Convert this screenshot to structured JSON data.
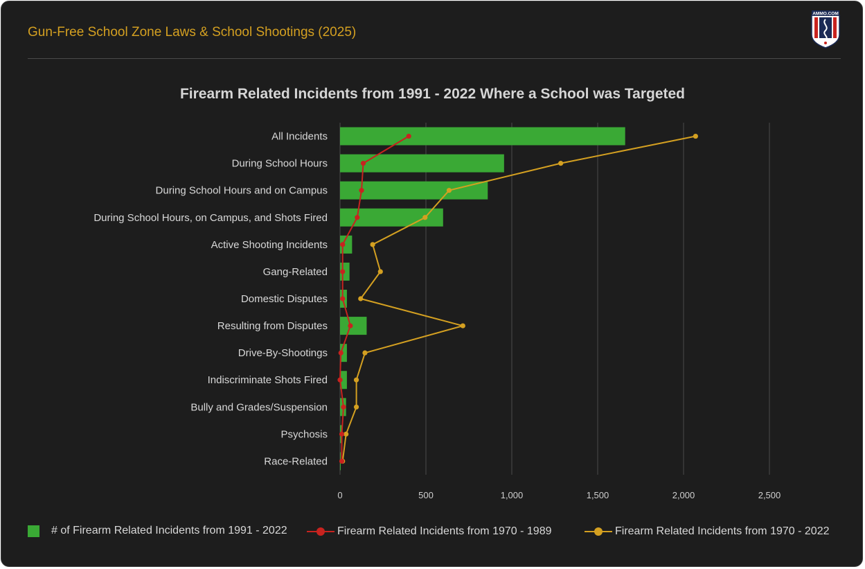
{
  "header": {
    "title": "Gun-Free School Zone Laws & School Shootings (2025)",
    "logo_text": "AMMO.COM"
  },
  "colors": {
    "bar": "#3aa935",
    "series_1970_1989": "#c8231f",
    "series_1970_2022": "#d4a021",
    "background": "#1d1d1d",
    "grid": "#4a4a4a"
  },
  "chart_data": {
    "type": "bar",
    "orientation": "horizontal",
    "title": "Firearm Related Incidents from 1991 - 2022 Where a School was Targeted",
    "categories": [
      "All Incidents",
      "During School Hours",
      "During School Hours and on Campus",
      "During School Hours, on Campus, and Shots Fired",
      "Active Shooting Incidents",
      "Gang-Related",
      "Domestic Disputes",
      "Resulting from Disputes",
      "Drive-By-Shootings",
      "Indiscriminate Shots Fired",
      "Bully and Grades/Suspension",
      "Psychosis",
      "Race-Related"
    ],
    "series": [
      {
        "name": "# of Firearm Related Incidents from 1991 - 2022",
        "kind": "bar",
        "color": "#3aa935",
        "values": [
          1660,
          955,
          860,
          600,
          70,
          55,
          40,
          155,
          40,
          40,
          35,
          10,
          3
        ]
      },
      {
        "name": "Firearm Related Incidents from 1970 - 1989",
        "kind": "line",
        "color": "#c8231f",
        "values": [
          400,
          135,
          125,
          100,
          15,
          15,
          15,
          60,
          5,
          0,
          20,
          10,
          10
        ]
      },
      {
        "name": "Firearm Related Incidents from 1970 - 2022",
        "kind": "line",
        "color": "#d4a021",
        "values": [
          2070,
          1285,
          635,
          495,
          190,
          235,
          120,
          715,
          145,
          95,
          95,
          35,
          15
        ]
      }
    ],
    "xlim": [
      0,
      2500
    ],
    "xticks": [
      0,
      500,
      1000,
      1500,
      2000,
      2500
    ],
    "xtick_labels": [
      "0",
      "500",
      "1,000",
      "1,500",
      "2,000",
      "2,500"
    ],
    "grid": true,
    "legend_position": "bottom"
  }
}
